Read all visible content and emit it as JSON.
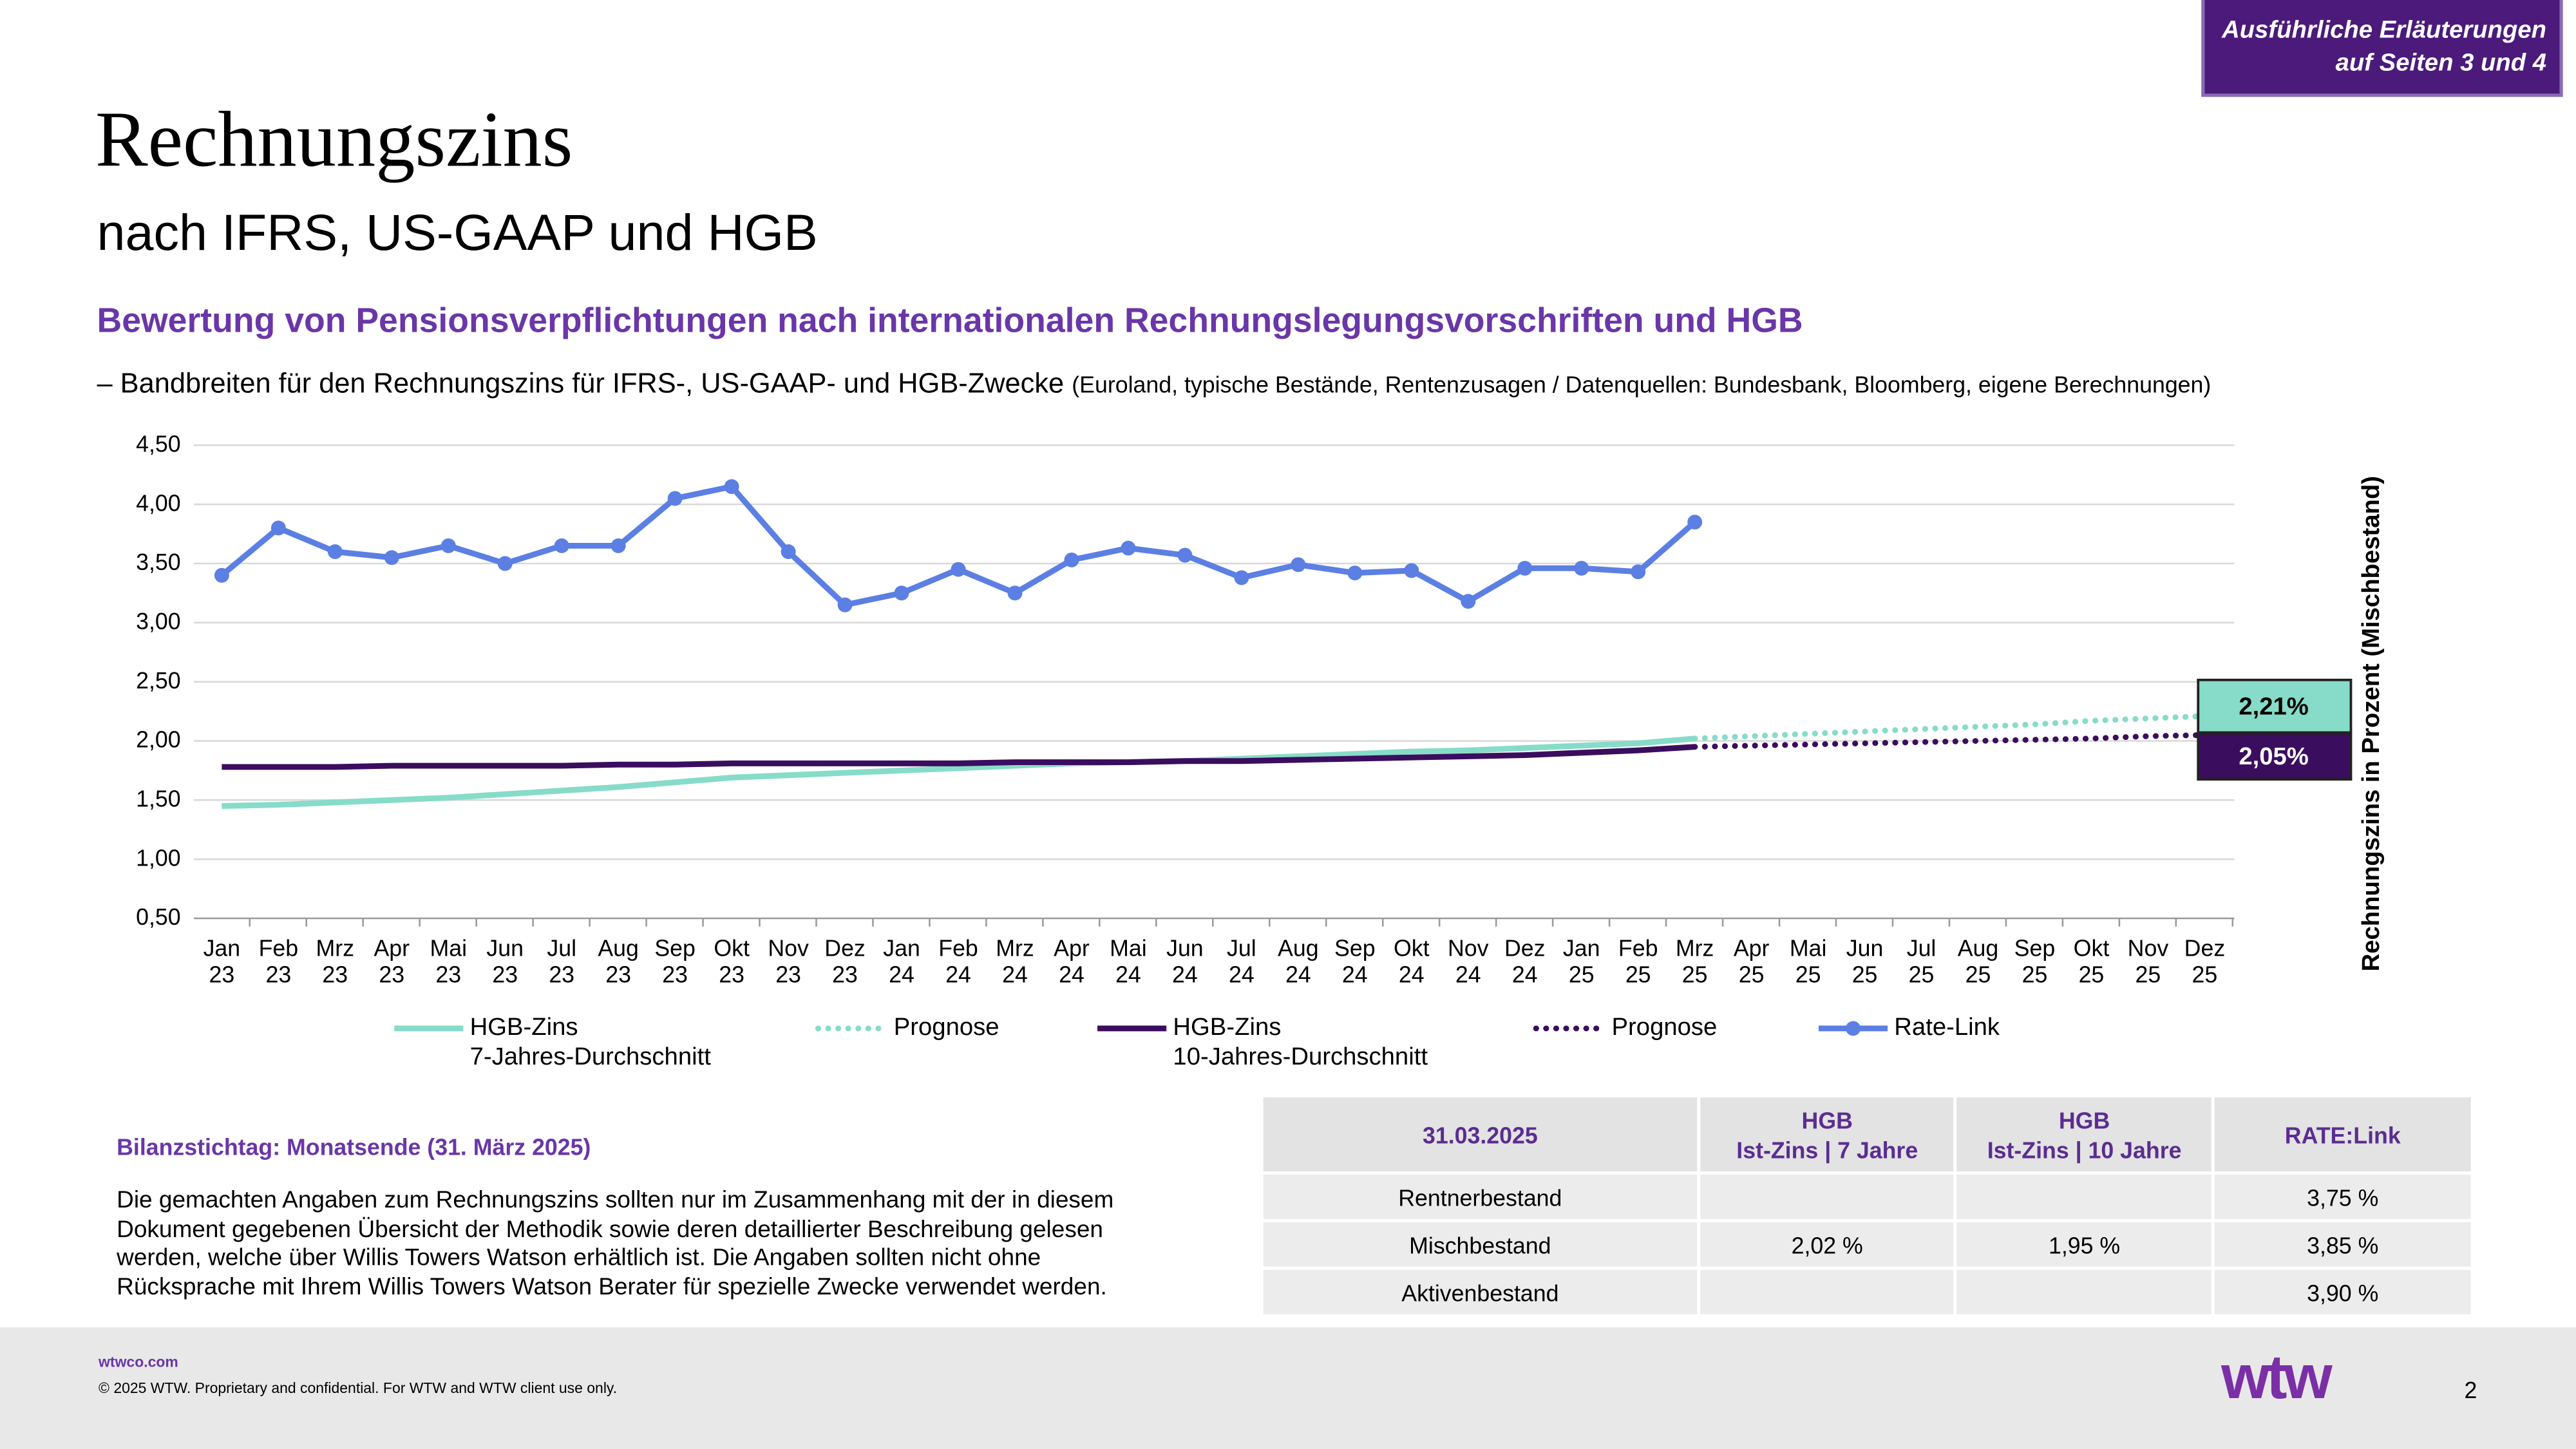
{
  "badge": "Ausführliche Erläuterungen\nauf Seiten 3 und 4",
  "header": {
    "title": "Rechnungszins",
    "subtitle": "nach IFRS, US-GAAP und HGB"
  },
  "heading": "Bewertung von Pensionsverpflichtungen nach internationalen Rechnungslegungsvorschriften und HGB",
  "description": {
    "main": "– Bandbreiten für den Rechnungszins für IFRS-, US-GAAP- und HGB-Zwecke",
    "note": "(Euroland, typische Bestände, Rentenzusagen / Datenquellen: Bundesbank, Bloomberg, eigene Berechnungen)"
  },
  "chart_data": {
    "type": "line",
    "ylabel": "Rechnungszins in Prozent (Mischbestand)",
    "categories": [
      "Jan\n23",
      "Feb\n23",
      "Mrz\n23",
      "Apr\n23",
      "Mai\n23",
      "Jun\n23",
      "Jul\n23",
      "Aug\n23",
      "Sep\n23",
      "Okt\n23",
      "Nov\n23",
      "Dez\n23",
      "Jan\n24",
      "Feb\n24",
      "Mrz\n24",
      "Apr\n24",
      "Mai\n24",
      "Jun\n24",
      "Jul\n24",
      "Aug\n24",
      "Sep\n24",
      "Okt\n24",
      "Nov\n24",
      "Dez\n24",
      "Jan\n25",
      "Feb\n25",
      "Mrz\n25",
      "Apr\n25",
      "Mai\n25",
      "Jun\n25",
      "Jul\n25",
      "Aug\n25",
      "Sep\n25",
      "Okt\n25",
      "Nov\n25",
      "Dez\n25"
    ],
    "ylim": [
      0.5,
      4.5
    ],
    "yticks": [
      {
        "value": 0.5,
        "label": "0,50"
      },
      {
        "value": 1,
        "label": "1,00"
      },
      {
        "value": 1.5,
        "label": "1,50"
      },
      {
        "value": 2,
        "label": "2,00"
      },
      {
        "value": 2.5,
        "label": "2,50"
      },
      {
        "value": 3,
        "label": "3,00"
      },
      {
        "value": 3.5,
        "label": "3,50"
      },
      {
        "value": 4,
        "label": "4,00"
      },
      {
        "value": 4.5,
        "label": "4,50"
      }
    ],
    "grid": true,
    "series": [
      {
        "name": "HGB-Zins\n7-Jahres-Durchschnitt",
        "color": "#86dcc8",
        "dash": "solid",
        "marker": false,
        "values": [
          1.45,
          1.46,
          1.48,
          1.5,
          1.52,
          1.55,
          1.58,
          1.61,
          1.65,
          1.69,
          1.71,
          1.73,
          1.75,
          1.77,
          1.79,
          1.81,
          1.82,
          1.83,
          1.85,
          1.87,
          1.89,
          1.91,
          1.92,
          1.94,
          1.96,
          1.98,
          2.02,
          null,
          null,
          null,
          null,
          null,
          null,
          null,
          null,
          null
        ]
      },
      {
        "name": "Prognose",
        "color": "#86dcc8",
        "dash": "dotted",
        "marker": false,
        "values": [
          null,
          null,
          null,
          null,
          null,
          null,
          null,
          null,
          null,
          null,
          null,
          null,
          null,
          null,
          null,
          null,
          null,
          null,
          null,
          null,
          null,
          null,
          null,
          null,
          null,
          null,
          2.02,
          2.04,
          2.06,
          2.08,
          2.1,
          2.12,
          2.14,
          2.17,
          2.19,
          2.21
        ],
        "value_labels": [
          null,
          null,
          null,
          null,
          null,
          null,
          null,
          null,
          null,
          null,
          null,
          null,
          null,
          null,
          null,
          null,
          null,
          null,
          null,
          null,
          null,
          null,
          null,
          null,
          null,
          null,
          null,
          null,
          null,
          null,
          null,
          null,
          null,
          null,
          null,
          "2,21%"
        ]
      },
      {
        "name": "HGB-Zins\n10-Jahres-Durchschnitt",
        "color": "#3b0d5e",
        "dash": "solid",
        "marker": false,
        "values": [
          1.78,
          1.78,
          1.78,
          1.79,
          1.79,
          1.79,
          1.79,
          1.8,
          1.8,
          1.81,
          1.81,
          1.81,
          1.81,
          1.81,
          1.82,
          1.82,
          1.82,
          1.83,
          1.83,
          1.84,
          1.85,
          1.86,
          1.87,
          1.88,
          1.9,
          1.92,
          1.95,
          null,
          null,
          null,
          null,
          null,
          null,
          null,
          null,
          null
        ]
      },
      {
        "name": "Prognose",
        "color": "#3b0d5e",
        "dash": "dotted",
        "marker": false,
        "values": [
          null,
          null,
          null,
          null,
          null,
          null,
          null,
          null,
          null,
          null,
          null,
          null,
          null,
          null,
          null,
          null,
          null,
          null,
          null,
          null,
          null,
          null,
          null,
          null,
          null,
          null,
          1.95,
          1.96,
          1.97,
          1.98,
          1.99,
          2.0,
          2.01,
          2.02,
          2.04,
          2.05
        ],
        "value_labels": [
          null,
          null,
          null,
          null,
          null,
          null,
          null,
          null,
          null,
          null,
          null,
          null,
          null,
          null,
          null,
          null,
          null,
          null,
          null,
          null,
          null,
          null,
          null,
          null,
          null,
          null,
          null,
          null,
          null,
          null,
          null,
          null,
          null,
          null,
          null,
          "2,05%"
        ]
      },
      {
        "name": "Rate-Link",
        "color": "#5b7fe3",
        "dash": "solid",
        "marker": true,
        "values": [
          3.4,
          3.8,
          3.6,
          3.55,
          3.65,
          3.5,
          3.65,
          3.65,
          4.05,
          4.15,
          3.6,
          3.15,
          3.25,
          3.45,
          3.25,
          3.53,
          3.63,
          3.57,
          3.38,
          3.49,
          3.42,
          3.44,
          3.18,
          3.46,
          3.46,
          3.43,
          3.85,
          null,
          null,
          null,
          null,
          null,
          null,
          null,
          null,
          null
        ]
      }
    ]
  },
  "note": {
    "title": "Bilanzstichtag: Monatsende (31. März 2025)",
    "text": "Die gemachten Angaben zum Rechnungszins sollten nur im Zusammenhang mit der in diesem Dokument gegebenen Übersicht der Methodik sowie deren detaillierter Beschreibung gelesen werden, welche über Willis Towers Watson erhältlich ist. Die Angaben sollten nicht ohne Rücksprache mit Ihrem Willis Towers Watson Berater für spezielle Zwecke verwendet werden."
  },
  "table": {
    "header": [
      "31.03.2025",
      "HGB\nIst-Zins  |  7 Jahre",
      "HGB\nIst-Zins  |  10 Jahre",
      "RATE:Link"
    ],
    "rows": [
      [
        "Rentnerbestand",
        null,
        null,
        "3,75 %"
      ],
      [
        "Mischbestand",
        "2,02 %",
        "1,95 %",
        "3,85 %"
      ],
      [
        "Aktivenbestand",
        null,
        null,
        "3,90 %"
      ]
    ]
  },
  "footer": {
    "site": "wtwco.com",
    "copyright": "© 2025 WTW. Proprietary and confidential. For WTW and WTW client use only.",
    "logo": "wtw",
    "page": "2"
  }
}
